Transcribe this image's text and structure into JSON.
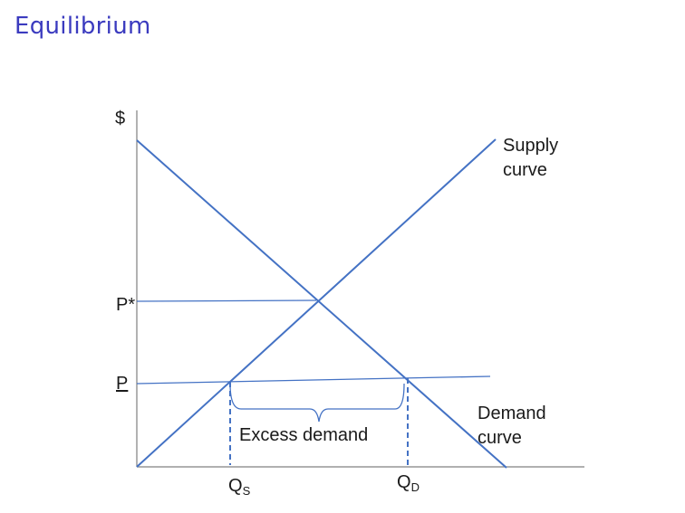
{
  "slide": {
    "title": "Equilibrium"
  },
  "diagram": {
    "y_axis_label": "$",
    "price_labels": {
      "equilibrium": "P*",
      "floor": "P"
    },
    "supply_label": [
      "Supply",
      "curve"
    ],
    "demand_label": [
      "Demand",
      "curve"
    ],
    "quantity_labels": {
      "supplied": {
        "main": "Q",
        "sub": "S"
      },
      "demanded": {
        "main": "Q",
        "sub": "D"
      }
    },
    "gap_label": "Excess demand",
    "colors": {
      "lines": "#4472c4",
      "axes": "#808080",
      "title": "#3b3bbf"
    }
  }
}
